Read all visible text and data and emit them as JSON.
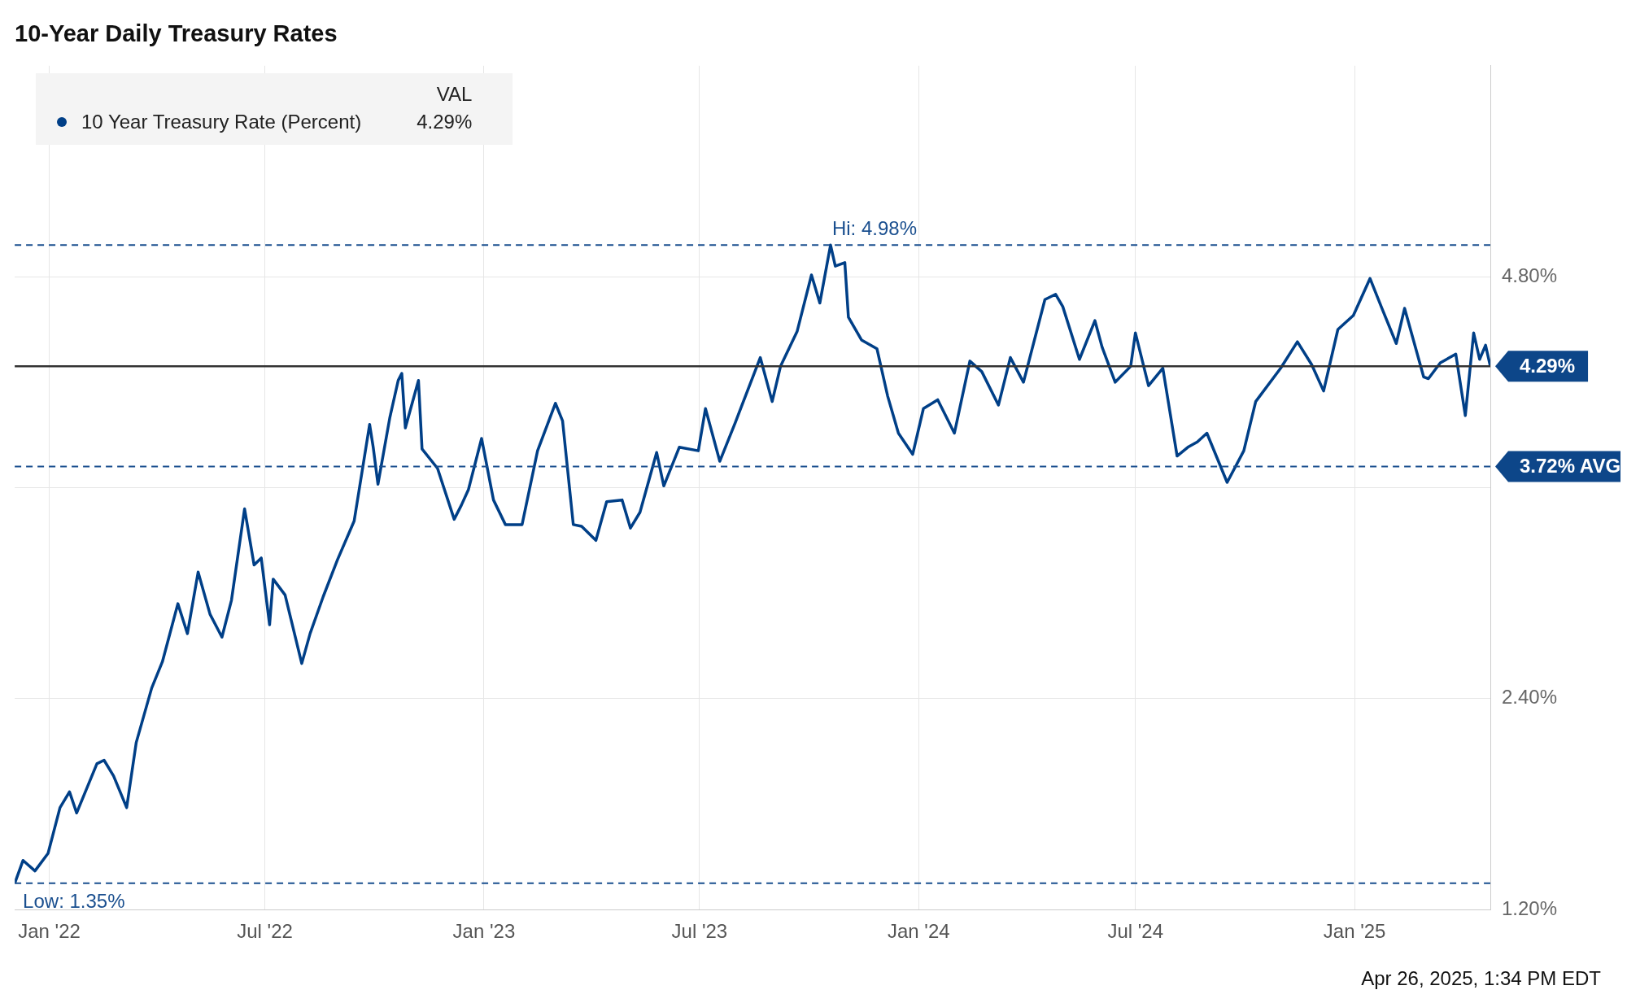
{
  "chart_data": {
    "type": "line",
    "title": "10-Year Daily Treasury Rates",
    "legend": "top left",
    "legend_title": "VAL",
    "grid": true,
    "marker": "none",
    "line_style": "solid",
    "xlim": [
      "2021-12-03",
      "2025-04-25"
    ],
    "xticks": [
      {
        "value": "2022-01-01",
        "label": "Jan '22"
      },
      {
        "value": "2022-07-01",
        "label": "Jul '22"
      },
      {
        "value": "2023-01-01",
        "label": "Jan '23"
      },
      {
        "value": "2023-07-01",
        "label": "Jul '23"
      },
      {
        "value": "2024-01-01",
        "label": "Jan '24"
      },
      {
        "value": "2024-07-01",
        "label": "Jul '24"
      },
      {
        "value": "2025-01-01",
        "label": "Jan '25"
      }
    ],
    "ylim": [
      1.2,
      6.0
    ],
    "yticks": [
      {
        "value": 1.2,
        "label": "1.20%"
      },
      {
        "value": 2.4,
        "label": "2.40%"
      },
      {
        "value": 3.6,
        "label": null
      },
      {
        "value": 4.8,
        "label": "4.80%"
      }
    ],
    "series": [
      {
        "name": "10 Year Treasury Rate (Percent)",
        "color": "#003f87",
        "x": [
          "2021-12-03",
          "2021-12-10",
          "2021-12-20",
          "2021-12-31",
          "2022-01-10",
          "2022-01-18",
          "2022-01-24",
          "2022-02-10",
          "2022-02-16",
          "2022-02-24",
          "2022-03-07",
          "2022-03-15",
          "2022-03-28",
          "2022-04-06",
          "2022-04-19",
          "2022-04-27",
          "2022-05-06",
          "2022-05-16",
          "2022-05-26",
          "2022-06-03",
          "2022-06-14",
          "2022-06-22",
          "2022-06-28",
          "2022-07-05",
          "2022-07-08",
          "2022-07-18",
          "2022-08-01",
          "2022-08-08",
          "2022-08-19",
          "2022-08-31",
          "2022-09-14",
          "2022-09-27",
          "2022-09-30",
          "2022-10-04",
          "2022-10-14",
          "2022-10-21",
          "2022-10-24",
          "2022-10-27",
          "2022-11-07",
          "2022-11-10",
          "2022-11-23",
          "2022-12-07",
          "2022-12-13",
          "2022-12-19",
          "2022-12-30",
          "2023-01-09",
          "2023-01-19",
          "2023-02-02",
          "2023-02-15",
          "2023-03-02",
          "2023-03-08",
          "2023-03-17",
          "2023-03-24",
          "2023-04-05",
          "2023-04-14",
          "2023-04-27",
          "2023-05-04",
          "2023-05-12",
          "2023-05-26",
          "2023-06-01",
          "2023-06-14",
          "2023-06-30",
          "2023-07-06",
          "2023-07-18",
          "2023-07-31",
          "2023-08-21",
          "2023-08-31",
          "2023-09-07",
          "2023-09-21",
          "2023-10-03",
          "2023-10-10",
          "2023-10-19",
          "2023-10-23",
          "2023-10-31",
          "2023-11-03",
          "2023-11-14",
          "2023-11-27",
          "2023-12-06",
          "2023-12-15",
          "2023-12-27",
          "2024-01-05",
          "2024-01-17",
          "2024-01-31",
          "2024-02-13",
          "2024-02-23",
          "2024-03-08",
          "2024-03-18",
          "2024-03-29",
          "2024-04-16",
          "2024-04-25",
          "2024-05-01",
          "2024-05-15",
          "2024-05-28",
          "2024-06-03",
          "2024-06-14",
          "2024-06-27",
          "2024-07-01",
          "2024-07-12",
          "2024-07-24",
          "2024-08-05",
          "2024-08-14",
          "2024-08-22",
          "2024-08-30",
          "2024-09-16",
          "2024-09-30",
          "2024-10-10",
          "2024-10-31",
          "2024-11-14",
          "2024-11-26",
          "2024-12-06",
          "2024-12-18",
          "2024-12-31",
          "2025-01-14",
          "2025-01-24",
          "2025-02-05",
          "2025-02-12",
          "2025-02-28",
          "2025-03-04",
          "2025-03-14",
          "2025-03-27",
          "2025-04-04",
          "2025-04-11",
          "2025-04-16",
          "2025-04-21",
          "2025-04-25"
        ],
        "values": [
          1.35,
          1.48,
          1.42,
          1.52,
          1.78,
          1.87,
          1.75,
          2.03,
          2.05,
          1.96,
          1.78,
          2.15,
          2.46,
          2.61,
          2.94,
          2.77,
          3.12,
          2.88,
          2.75,
          2.96,
          3.48,
          3.16,
          3.2,
          2.82,
          3.08,
          2.99,
          2.6,
          2.77,
          2.98,
          3.19,
          3.41,
          3.96,
          3.83,
          3.62,
          4.0,
          4.21,
          4.25,
          3.94,
          4.21,
          3.82,
          3.71,
          3.42,
          3.5,
          3.59,
          3.88,
          3.53,
          3.39,
          3.39,
          3.81,
          4.08,
          3.98,
          3.39,
          3.38,
          3.3,
          3.52,
          3.53,
          3.37,
          3.46,
          3.8,
          3.61,
          3.83,
          3.81,
          4.05,
          3.75,
          3.97,
          4.34,
          4.09,
          4.29,
          4.49,
          4.81,
          4.65,
          4.98,
          4.86,
          4.88,
          4.57,
          4.44,
          4.39,
          4.12,
          3.91,
          3.79,
          4.05,
          4.1,
          3.91,
          4.32,
          4.26,
          4.07,
          4.34,
          4.2,
          4.67,
          4.7,
          4.63,
          4.33,
          4.55,
          4.4,
          4.2,
          4.29,
          4.48,
          4.18,
          4.28,
          3.78,
          3.83,
          3.86,
          3.91,
          3.63,
          3.81,
          4.09,
          4.28,
          4.43,
          4.3,
          4.15,
          4.5,
          4.58,
          4.79,
          4.62,
          4.42,
          4.62,
          4.23,
          4.22,
          4.31,
          4.36,
          4.01,
          4.48,
          4.33,
          4.41,
          4.29
        ]
      }
    ],
    "ref_lines": [
      {
        "axis": "y",
        "value": 4.98,
        "label": "Hi: 4.98%",
        "color": "#1a4f8f",
        "line_style": "dashed"
      },
      {
        "axis": "y",
        "value": 1.35,
        "label": "Low: 1.35%",
        "color": "#1a4f8f",
        "line_style": "dashed"
      },
      {
        "axis": "y",
        "value": 3.72,
        "label": "3.72% AVG",
        "color": "#1a4f8f",
        "line_style": "dashed"
      },
      {
        "axis": "y",
        "value": 4.29,
        "label": "4.29%",
        "color": "#333333",
        "line_style": "solid"
      }
    ],
    "annotations": [
      "4.29%",
      "Apr 26, 2025, 1:34 PM EDT"
    ]
  }
}
